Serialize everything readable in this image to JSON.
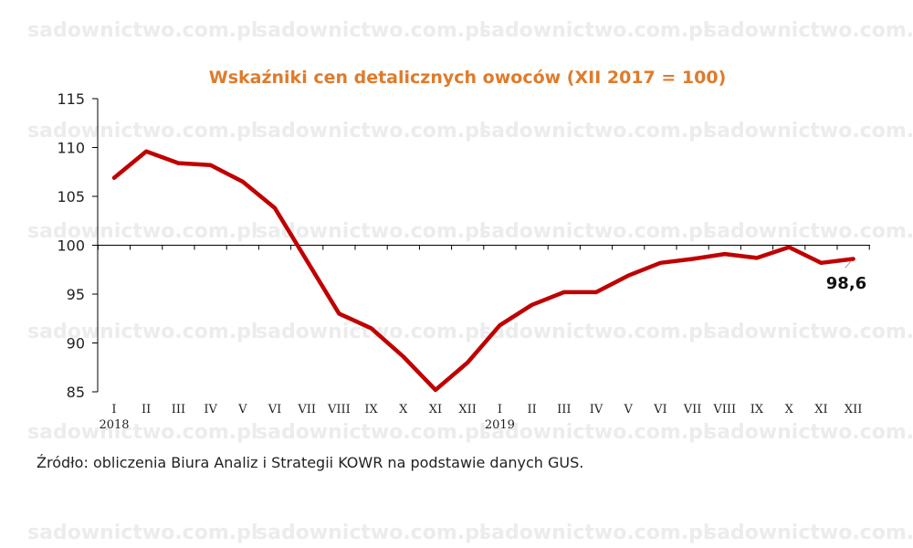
{
  "watermark": "sadownictwo.com.pl",
  "source": "Źródło: obliczenia Biura Analiz i Strategii KOWR na podstawie danych GUS.",
  "colors": {
    "title": "#e07b2a",
    "series": "#c00000",
    "axis": "#000000"
  },
  "chart_data": {
    "type": "line",
    "title": "Wskaźniki cen detalicznych owoców (XII 2017 = 100)",
    "xlabel": "",
    "ylabel": "",
    "categories": [
      "I",
      "II",
      "III",
      "IV",
      "V",
      "VI",
      "VII",
      "VIII",
      "IX",
      "X",
      "XI",
      "XII",
      "I",
      "II",
      "III",
      "IV",
      "V",
      "VI",
      "VII",
      "VIII",
      "IX",
      "X",
      "XI",
      "XII"
    ],
    "year_labels": [
      {
        "label": "2018",
        "category_index": 0
      },
      {
        "label": "2019",
        "category_index": 12
      }
    ],
    "series": [
      {
        "values": [
          106.9,
          109.6,
          108.4,
          108.2,
          106.5,
          103.8,
          98.4,
          93.0,
          91.5,
          88.6,
          85.2,
          88.0,
          91.8,
          93.9,
          95.2,
          95.2,
          96.9,
          98.2,
          98.6,
          99.1,
          98.7,
          99.8,
          98.2,
          98.6
        ]
      }
    ],
    "end_label": "98,6",
    "ylim": [
      85,
      115
    ],
    "yticks": [
      85,
      90,
      95,
      100,
      105,
      110,
      115
    ],
    "baseline": 100,
    "grid": false
  }
}
